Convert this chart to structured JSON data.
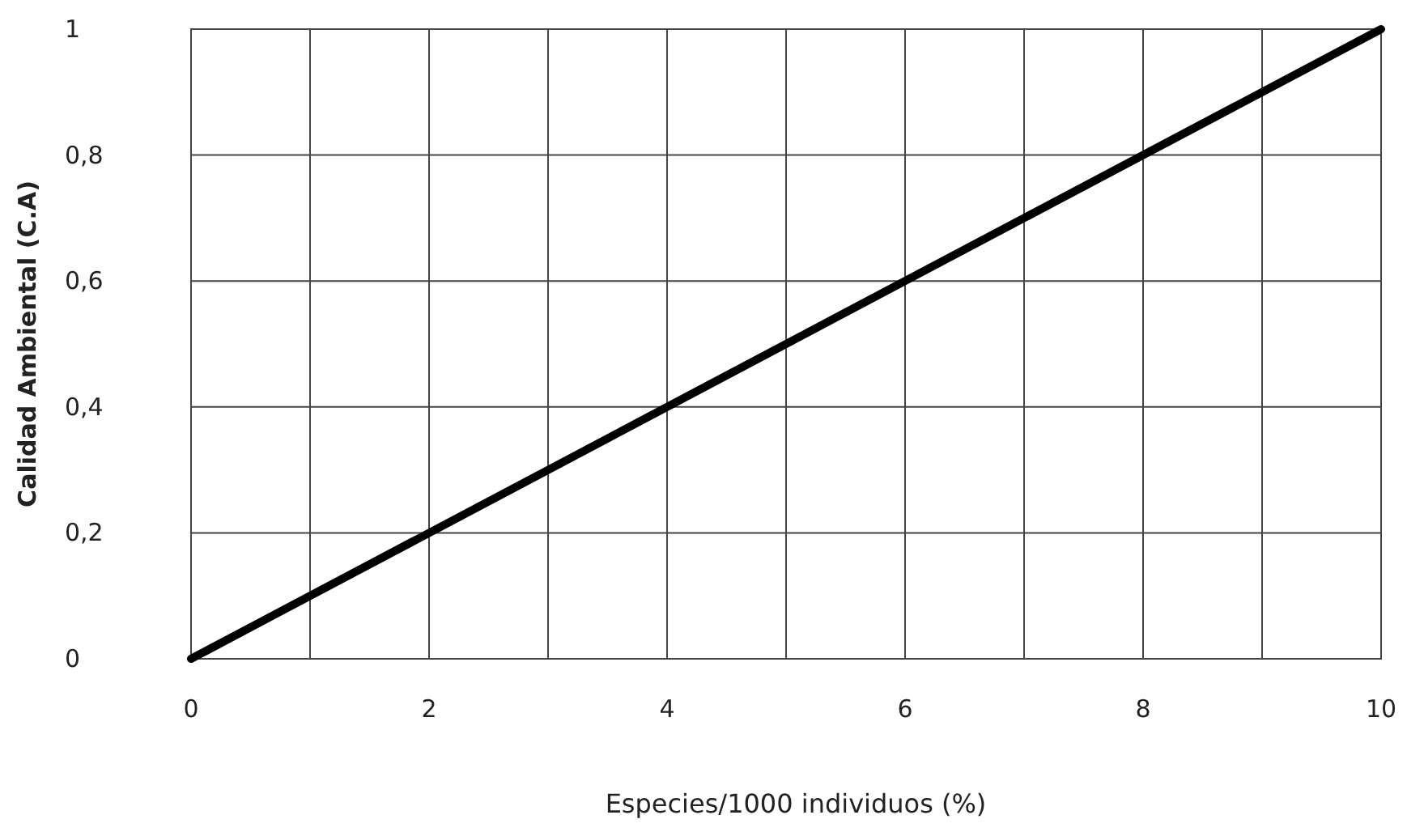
{
  "chart_data": {
    "type": "line",
    "xlabel": "Especies/1000 individuos (%)",
    "ylabel": "Calidad Ambiental (C.A)",
    "x": [
      0,
      10
    ],
    "series": [
      {
        "color": "#000000",
        "values": [
          0,
          1
        ]
      }
    ],
    "xlim": [
      0,
      10
    ],
    "ylim": [
      0,
      1
    ],
    "xticks": [
      0,
      {
        "value": 1,
        "label": null
      },
      2,
      {
        "value": 3,
        "label": null
      },
      4,
      {
        "value": 5,
        "label": null
      },
      6,
      {
        "value": 7,
        "label": null
      },
      8,
      {
        "value": 9,
        "label": null
      },
      10
    ],
    "yticks": [
      0,
      {
        "value": 0.2,
        "label": "0,2"
      },
      {
        "value": 0.4,
        "label": "0,4"
      },
      {
        "value": 0.6,
        "label": "0,6"
      },
      {
        "value": 0.8,
        "label": "0,8"
      },
      1
    ],
    "grid": true,
    "marker": "none",
    "line_style": "solid"
  }
}
